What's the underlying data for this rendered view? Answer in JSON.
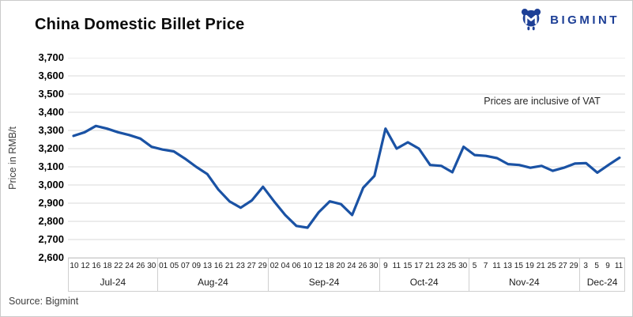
{
  "header": {
    "title": "China Domestic Billet Price",
    "brand": {
      "name": "BIGMINT",
      "icon": "bigmint-logo-icon",
      "color": "#1d3f96"
    }
  },
  "chart_data": {
    "type": "line",
    "title": "China Domestic Billet Price",
    "ylabel": "Price in RMB/t",
    "annotation": "Prices are inclusive of VAT",
    "series_name": "China domestic billet price (RMB/t, inclusive of VAT)",
    "ylim": [
      2600,
      3700
    ],
    "ytick_step": 100,
    "ytick_labels": [
      "3,700",
      "3,600",
      "3,500",
      "3,400",
      "3,300",
      "3,200",
      "3,100",
      "3,000",
      "2,900",
      "2,800",
      "2,700",
      "2,600"
    ],
    "grid": "horizontal",
    "grid_color": "#d9d9d9",
    "line_color": "#1a52a4",
    "legend": "none",
    "months": [
      {
        "label": "Jul-24",
        "days": [
          "10",
          "12",
          "16",
          "18",
          "22",
          "24",
          "26",
          "30"
        ],
        "values": [
          3270,
          3290,
          3325,
          3310,
          3290,
          3275,
          3255,
          3210
        ]
      },
      {
        "label": "Aug-24",
        "days": [
          "01",
          "05",
          "07",
          "09",
          "13",
          "16",
          "21",
          "23",
          "27",
          "29"
        ],
        "values": [
          3195,
          3185,
          3145,
          3100,
          3060,
          2975,
          2910,
          2875,
          2915,
          2990
        ]
      },
      {
        "label": "Sep-24",
        "days": [
          "02",
          "04",
          "06",
          "10",
          "12",
          "18",
          "20",
          "24",
          "26",
          "30"
        ],
        "values": [
          2910,
          2835,
          2775,
          2765,
          2850,
          2910,
          2895,
          2835,
          2985,
          3050
        ]
      },
      {
        "label": "Oct-24",
        "days": [
          "9",
          "11",
          "15",
          "17",
          "21",
          "23",
          "25",
          "30"
        ],
        "values": [
          3310,
          3200,
          3235,
          3200,
          3110,
          3105,
          3070,
          3210
        ]
      },
      {
        "label": "Nov-24",
        "days": [
          "5",
          "7",
          "11",
          "13",
          "15",
          "19",
          "21",
          "25",
          "27",
          "29"
        ],
        "values": [
          3165,
          3160,
          3148,
          3115,
          3110,
          3095,
          3105,
          3078,
          3095,
          3118
        ]
      },
      {
        "label": "Dec-24",
        "days": [
          "3",
          "5",
          "9",
          "11"
        ],
        "values": [
          3120,
          3068,
          3110,
          3150
        ]
      }
    ]
  },
  "footer": {
    "source": "Source: Bigmint"
  }
}
